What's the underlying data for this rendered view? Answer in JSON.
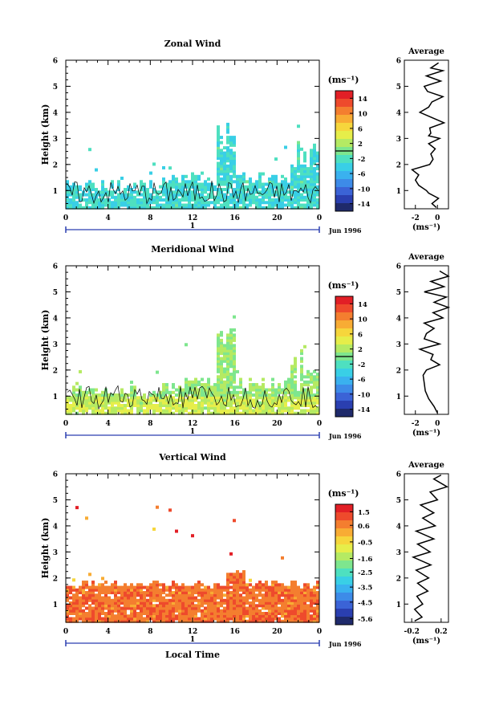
{
  "panels": [
    {
      "title": "Zonal Wind",
      "ylabel": "Height (km)",
      "cb_unit_label": "(ms⁻¹)",
      "cb_ticks": [
        "14",
        "10",
        "6",
        "2",
        "-2",
        "-6",
        "-10",
        "-14"
      ],
      "avg_title": "Average",
      "avg_xticks": [
        "-2",
        "0"
      ],
      "avg_xlabel": "(ms⁻¹)",
      "xticks": [
        "0",
        "4",
        "8",
        "12",
        "16",
        "20",
        "0"
      ],
      "day_label": "1",
      "date_label": "Jun 1996",
      "xlabel": ""
    },
    {
      "title": "Meridional Wind",
      "ylabel": "Height (km)",
      "cb_unit_label": "(ms⁻¹)",
      "cb_ticks": [
        "14",
        "10",
        "6",
        "2",
        "-2",
        "-6",
        "-10",
        "-14"
      ],
      "avg_title": "Average",
      "avg_xticks": [
        "-2",
        "0"
      ],
      "avg_xlabel": "(ms⁻¹)",
      "xticks": [
        "0",
        "4",
        "8",
        "12",
        "16",
        "20",
        "0"
      ],
      "day_label": "1",
      "date_label": "Jun 1996",
      "xlabel": ""
    },
    {
      "title": "Vertical Wind",
      "ylabel": "Height (km)",
      "cb_unit_label": "(ms⁻¹)",
      "cb_ticks": [
        "1.5",
        "0.6",
        "-0.5",
        "-1.6",
        "-2.5",
        "-3.5",
        "-4.5",
        "-5.6"
      ],
      "avg_title": "Average",
      "avg_xticks": [
        "-0.2",
        "0.2"
      ],
      "avg_xlabel": "(ms⁻¹)",
      "xticks": [
        "0",
        "4",
        "8",
        "12",
        "16",
        "20",
        "0"
      ],
      "day_label": "1",
      "date_label": "Jun 1996",
      "xlabel": "Local Time"
    }
  ],
  "colors": {
    "colormap": [
      "#1f2a6b",
      "#2a3fb0",
      "#3b63d6",
      "#3d8be8",
      "#3ab1ef",
      "#39cfe6",
      "#4ee0c0",
      "#7ee68e",
      "#b5ea63",
      "#e6ee4a",
      "#f6d63c",
      "#f8ac34",
      "#f47e2f",
      "#ee4a2c",
      "#e21f26"
    ],
    "axis": "#000000",
    "day_bar": "#2a3fb0"
  },
  "chart_data": [
    {
      "type": "heatmap",
      "title": "Zonal Wind",
      "xlabel": "",
      "ylabel": "Height (km)",
      "x_range_hours": [
        0,
        24
      ],
      "xticks": [
        0,
        4,
        8,
        12,
        16,
        20,
        24
      ],
      "y_range_km": [
        0.3,
        6
      ],
      "yticks": [
        1,
        2,
        3,
        4,
        5,
        6
      ],
      "colorbar_range": [
        -16,
        16
      ],
      "colorbar_ticks": [
        14,
        10,
        6,
        2,
        -2,
        -6,
        -10,
        -14
      ],
      "dominant_value_ms": -3,
      "average_profile": {
        "x_range": [
          -3,
          1
        ],
        "xticks": [
          -2,
          0
        ],
        "height_km": [
          0.35,
          0.5,
          0.7,
          0.9,
          1.0,
          1.2,
          1.4,
          1.6,
          1.8,
          2.0,
          2.2,
          2.4,
          2.6,
          2.8,
          3.0,
          3.1,
          3.2,
          3.4,
          3.6,
          3.8,
          4.0,
          4.2,
          4.4,
          4.6,
          4.8,
          5.0,
          5.2,
          5.4,
          5.6,
          5.7,
          5.9
        ],
        "value_ms": [
          -0.1,
          -0.5,
          0.1,
          -0.8,
          -1.0,
          -1.7,
          -2.0,
          -1.7,
          -2.3,
          -0.7,
          -0.4,
          -0.6,
          -0.2,
          -0.8,
          0.2,
          -0.8,
          -0.6,
          -0.7,
          0.6,
          -0.5,
          -1.6,
          -0.8,
          -0.5,
          0.5,
          -0.9,
          -1.2,
          0.3,
          -1.0,
          0.5,
          -0.6,
          0.1
        ]
      }
    },
    {
      "type": "heatmap",
      "title": "Meridional Wind",
      "xlabel": "",
      "ylabel": "Height (km)",
      "x_range_hours": [
        0,
        24
      ],
      "xticks": [
        0,
        4,
        8,
        12,
        16,
        20,
        24
      ],
      "y_range_km": [
        0.3,
        6
      ],
      "yticks": [
        1,
        2,
        3,
        4,
        5,
        6
      ],
      "colorbar_range": [
        -16,
        16
      ],
      "colorbar_ticks": [
        14,
        10,
        6,
        2,
        -2,
        -6,
        -10,
        -14
      ],
      "dominant_value_ms": 1,
      "average_profile": {
        "x_range": [
          -3,
          1
        ],
        "xticks": [
          -2,
          0
        ],
        "height_km": [
          0.35,
          0.6,
          0.9,
          1.2,
          1.5,
          1.8,
          2.0,
          2.2,
          2.4,
          2.6,
          2.8,
          3.0,
          3.2,
          3.4,
          3.6,
          3.8,
          4.0,
          4.2,
          4.4,
          4.6,
          4.8,
          5.0,
          5.2,
          5.4,
          5.6,
          5.8
        ],
        "value_ms": [
          0.0,
          -0.3,
          -0.8,
          -1.1,
          -1.2,
          -1.3,
          -1.0,
          0.2,
          -0.6,
          -0.4,
          -1.6,
          0.2,
          -1.2,
          -1.0,
          -0.3,
          -1.2,
          0.5,
          -0.4,
          1.0,
          -0.3,
          0.8,
          -1.2,
          0.6,
          -0.6,
          1.0,
          0.2
        ]
      }
    },
    {
      "type": "heatmap",
      "title": "Vertical Wind",
      "xlabel": "Local Time",
      "ylabel": "Height (km)",
      "x_range_hours": [
        0,
        24
      ],
      "xticks": [
        0,
        4,
        8,
        12,
        16,
        20,
        24
      ],
      "y_range_km": [
        0.3,
        6
      ],
      "yticks": [
        1,
        2,
        3,
        4,
        5,
        6
      ],
      "colorbar_range": [
        -6,
        2
      ],
      "colorbar_ticks": [
        1.5,
        0.6,
        -0.5,
        -1.6,
        -2.5,
        -3.5,
        -4.5,
        -5.6
      ],
      "dominant_value_ms": 0.8,
      "average_profile": {
        "x_range": [
          -0.3,
          0.3
        ],
        "xticks": [
          -0.2,
          0.2
        ],
        "height_km": [
          0.35,
          0.5,
          0.8,
          1.0,
          1.3,
          1.5,
          1.8,
          2.0,
          2.3,
          2.5,
          2.8,
          3.0,
          3.3,
          3.5,
          3.8,
          4.0,
          4.3,
          4.5,
          4.8,
          5.0,
          5.3,
          5.5,
          5.8,
          5.95
        ],
        "value_ms": [
          -0.16,
          -0.06,
          -0.16,
          -0.05,
          -0.13,
          0.02,
          -0.12,
          0.03,
          -0.14,
          0.06,
          -0.18,
          0.05,
          -0.12,
          0.1,
          -0.14,
          0.12,
          -0.05,
          0.1,
          -0.08,
          0.15,
          0.05,
          0.28,
          0.1,
          0.2
        ]
      }
    }
  ]
}
